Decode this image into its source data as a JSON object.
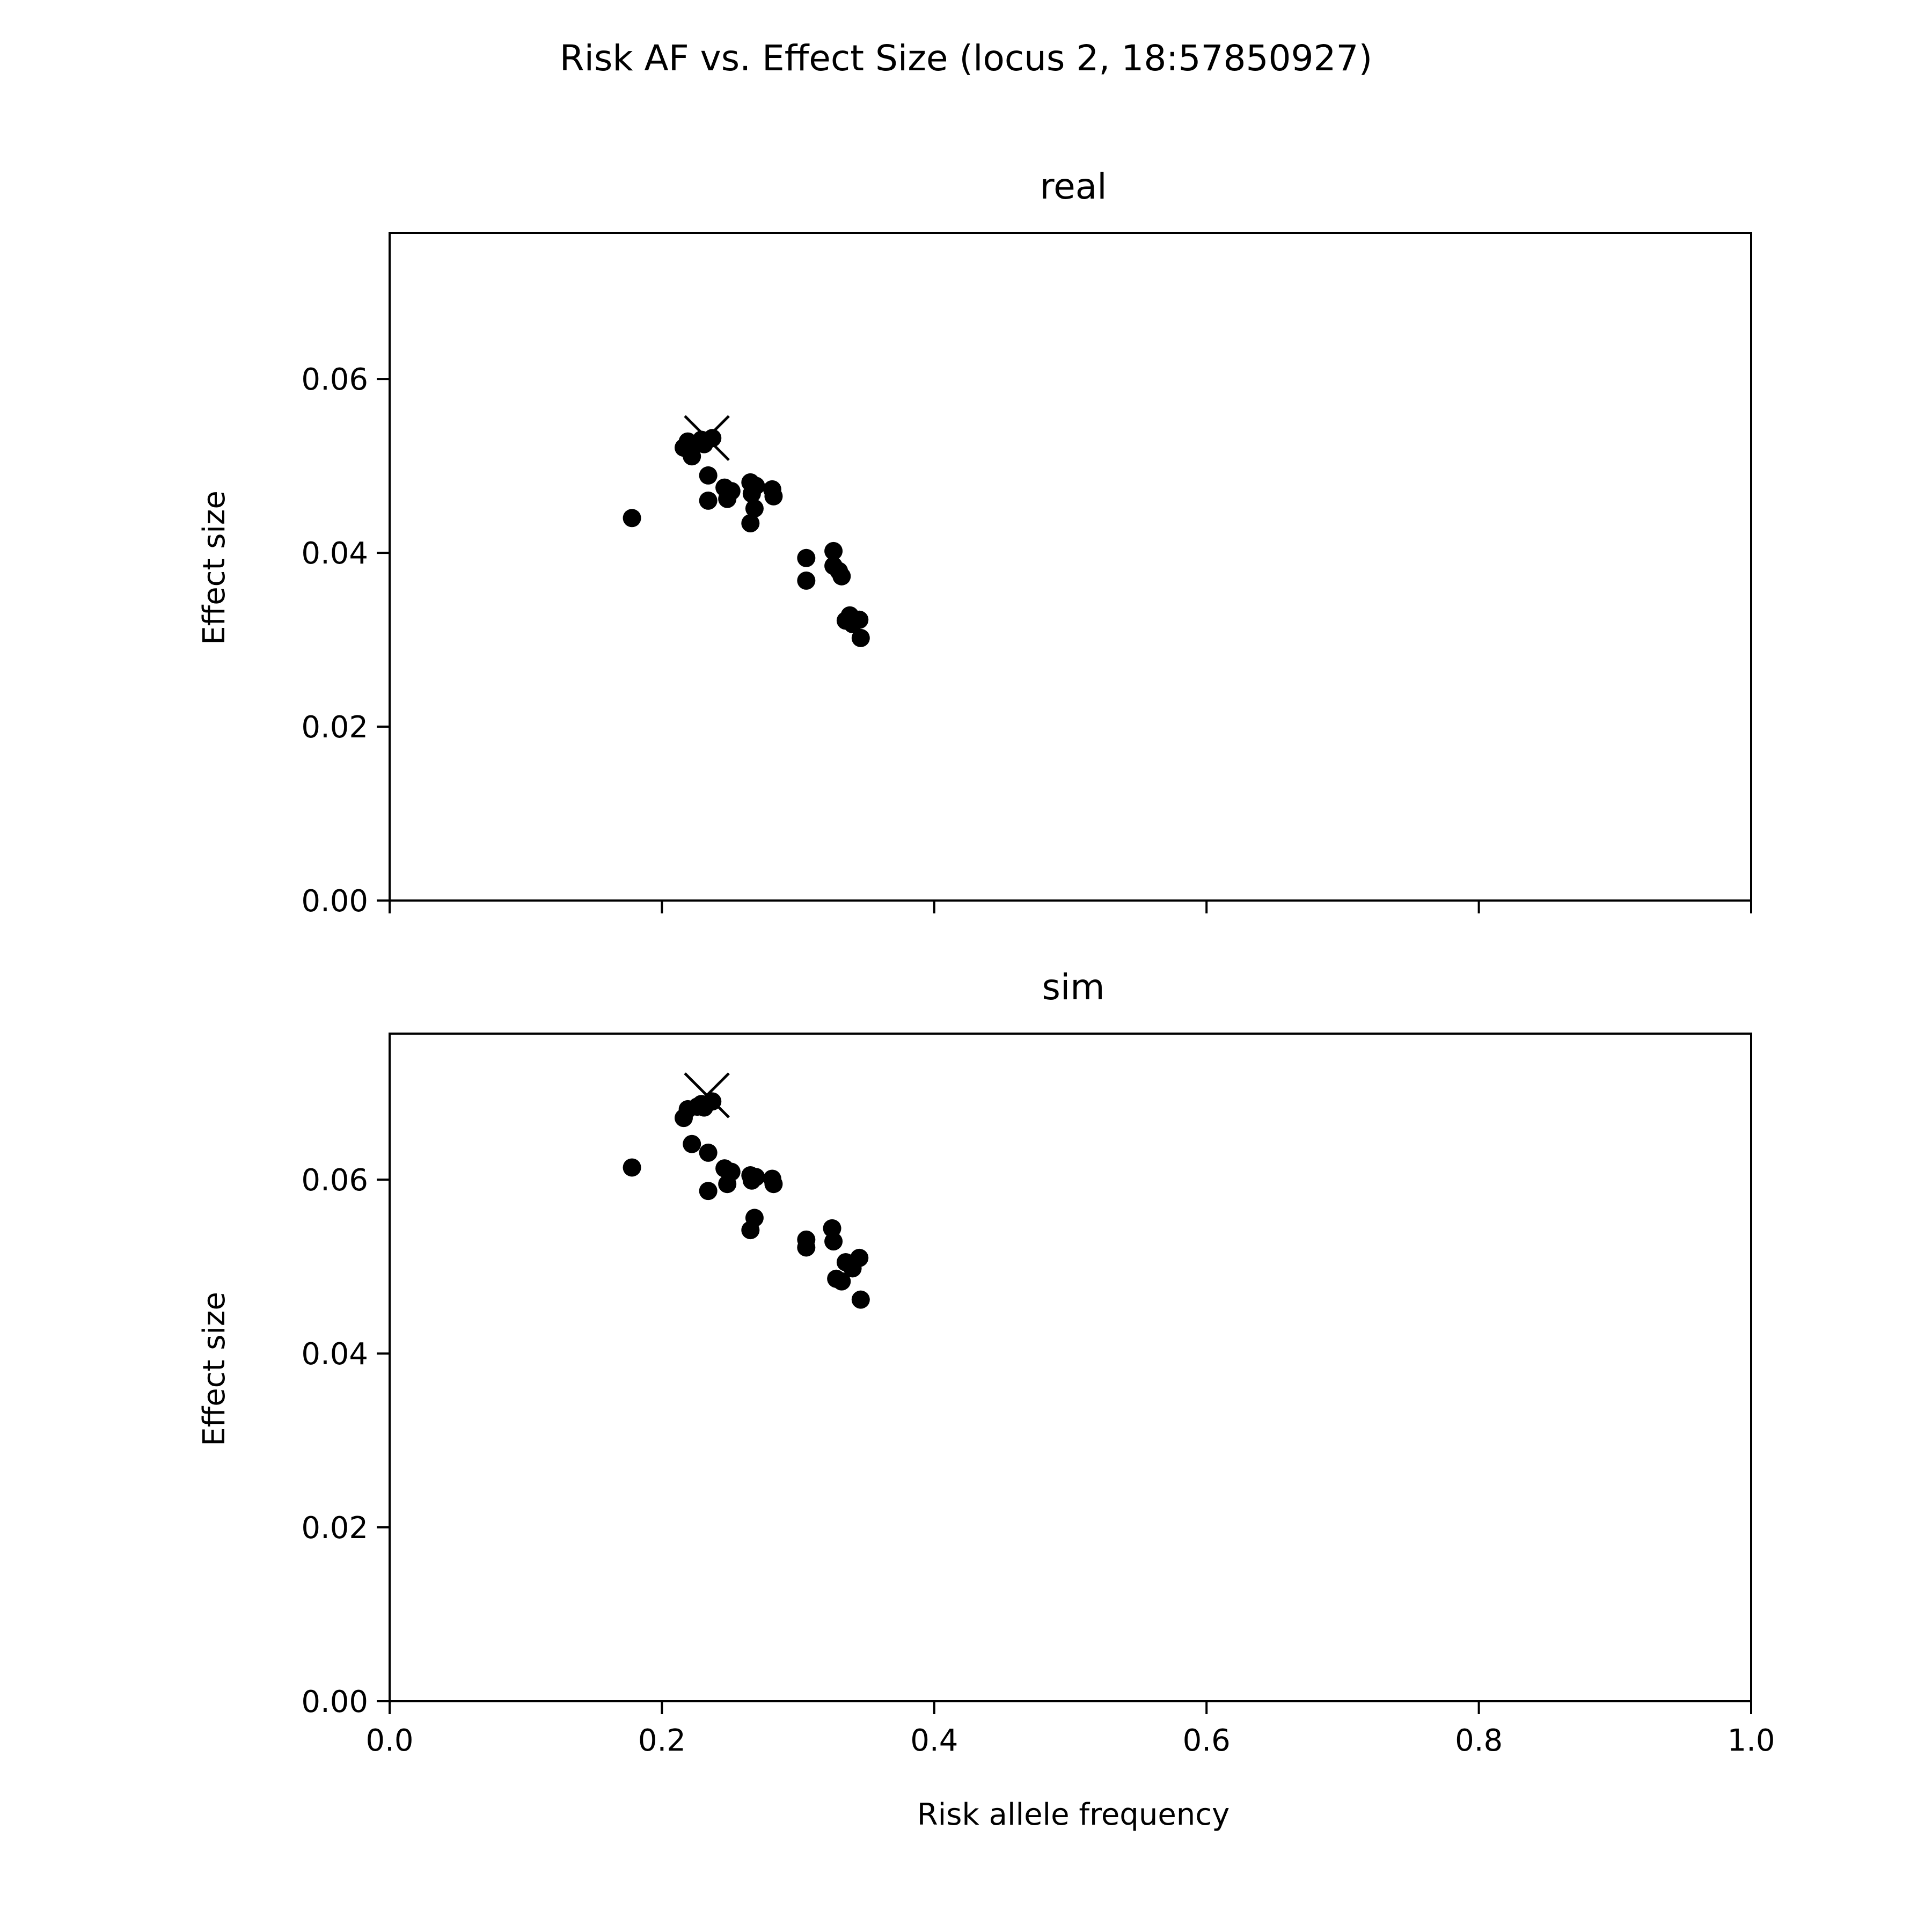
{
  "figure": {
    "title": "Risk AF vs. Effect Size (locus 2, 18:57850927)"
  },
  "chart_data": [
    {
      "type": "scatter",
      "title": "real",
      "xlabel": "",
      "ylabel": "Effect size",
      "xlim": [
        0.0,
        1.0
      ],
      "ylim": [
        0.0,
        0.0768
      ],
      "xticks": [
        0.0,
        0.2,
        0.4,
        0.6,
        0.8,
        1.0
      ],
      "xtick_labels": [],
      "yticks": [
        0.0,
        0.02,
        0.04,
        0.06
      ],
      "ytick_labels": [
        "0.00",
        "0.02",
        "0.04",
        "0.06"
      ],
      "grid": false,
      "series": [
        {
          "marker": "circle",
          "color": "#000000",
          "points": [
            {
              "x": 0.178,
              "y": 0.044
            },
            {
              "x": 0.216,
              "y": 0.0521
            },
            {
              "x": 0.219,
              "y": 0.0528
            },
            {
              "x": 0.222,
              "y": 0.0511
            },
            {
              "x": 0.226,
              "y": 0.0526
            },
            {
              "x": 0.229,
              "y": 0.053
            },
            {
              "x": 0.231,
              "y": 0.0525
            },
            {
              "x": 0.234,
              "y": 0.0489
            },
            {
              "x": 0.234,
              "y": 0.046
            },
            {
              "x": 0.237,
              "y": 0.0532
            },
            {
              "x": 0.246,
              "y": 0.0475
            },
            {
              "x": 0.248,
              "y": 0.0462
            },
            {
              "x": 0.251,
              "y": 0.0471
            },
            {
              "x": 0.265,
              "y": 0.0481
            },
            {
              "x": 0.265,
              "y": 0.0434
            },
            {
              "x": 0.266,
              "y": 0.0468
            },
            {
              "x": 0.268,
              "y": 0.0451
            },
            {
              "x": 0.269,
              "y": 0.0477
            },
            {
              "x": 0.281,
              "y": 0.0473
            },
            {
              "x": 0.282,
              "y": 0.0465
            },
            {
              "x": 0.306,
              "y": 0.0394
            },
            {
              "x": 0.306,
              "y": 0.0368
            },
            {
              "x": 0.326,
              "y": 0.0402
            },
            {
              "x": 0.326,
              "y": 0.0385
            },
            {
              "x": 0.33,
              "y": 0.0379
            },
            {
              "x": 0.332,
              "y": 0.0373
            },
            {
              "x": 0.335,
              "y": 0.0322
            },
            {
              "x": 0.338,
              "y": 0.0328
            },
            {
              "x": 0.34,
              "y": 0.0318
            },
            {
              "x": 0.345,
              "y": 0.0323
            },
            {
              "x": 0.346,
              "y": 0.0302
            }
          ]
        },
        {
          "marker": "x",
          "color": "#000000",
          "points": [
            {
              "x": 0.233,
              "y": 0.0532
            }
          ]
        }
      ]
    },
    {
      "type": "scatter",
      "title": "sim",
      "xlabel": "Risk allele frequency",
      "ylabel": "Effect size",
      "xlim": [
        0.0,
        1.0
      ],
      "ylim": [
        0.0,
        0.0768
      ],
      "xticks": [
        0.0,
        0.2,
        0.4,
        0.6,
        0.8,
        1.0
      ],
      "xtick_labels": [
        "0.0",
        "0.2",
        "0.4",
        "0.6",
        "0.8",
        "1.0"
      ],
      "yticks": [
        0.0,
        0.02,
        0.04,
        0.06
      ],
      "ytick_labels": [
        "0.00",
        "0.02",
        "0.04",
        "0.06"
      ],
      "grid": false,
      "series": [
        {
          "marker": "circle",
          "color": "#000000",
          "points": [
            {
              "x": 0.178,
              "y": 0.0614
            },
            {
              "x": 0.216,
              "y": 0.0671
            },
            {
              "x": 0.219,
              "y": 0.0681
            },
            {
              "x": 0.222,
              "y": 0.0641
            },
            {
              "x": 0.226,
              "y": 0.0684
            },
            {
              "x": 0.229,
              "y": 0.0687
            },
            {
              "x": 0.231,
              "y": 0.0683
            },
            {
              "x": 0.234,
              "y": 0.0631
            },
            {
              "x": 0.234,
              "y": 0.0587
            },
            {
              "x": 0.237,
              "y": 0.069
            },
            {
              "x": 0.246,
              "y": 0.0613
            },
            {
              "x": 0.248,
              "y": 0.0595
            },
            {
              "x": 0.251,
              "y": 0.0609
            },
            {
              "x": 0.265,
              "y": 0.0605
            },
            {
              "x": 0.265,
              "y": 0.0542
            },
            {
              "x": 0.266,
              "y": 0.0599
            },
            {
              "x": 0.268,
              "y": 0.0556
            },
            {
              "x": 0.269,
              "y": 0.0603
            },
            {
              "x": 0.281,
              "y": 0.0601
            },
            {
              "x": 0.282,
              "y": 0.0595
            },
            {
              "x": 0.306,
              "y": 0.0531
            },
            {
              "x": 0.306,
              "y": 0.0522
            },
            {
              "x": 0.325,
              "y": 0.0544
            },
            {
              "x": 0.326,
              "y": 0.0529
            },
            {
              "x": 0.328,
              "y": 0.0486
            },
            {
              "x": 0.332,
              "y": 0.0483
            },
            {
              "x": 0.335,
              "y": 0.0505
            },
            {
              "x": 0.338,
              "y": 0.0503
            },
            {
              "x": 0.34,
              "y": 0.0498
            },
            {
              "x": 0.345,
              "y": 0.051
            },
            {
              "x": 0.346,
              "y": 0.0462
            }
          ]
        },
        {
          "marker": "x",
          "color": "#000000",
          "points": [
            {
              "x": 0.233,
              "y": 0.0697
            }
          ]
        }
      ]
    }
  ]
}
